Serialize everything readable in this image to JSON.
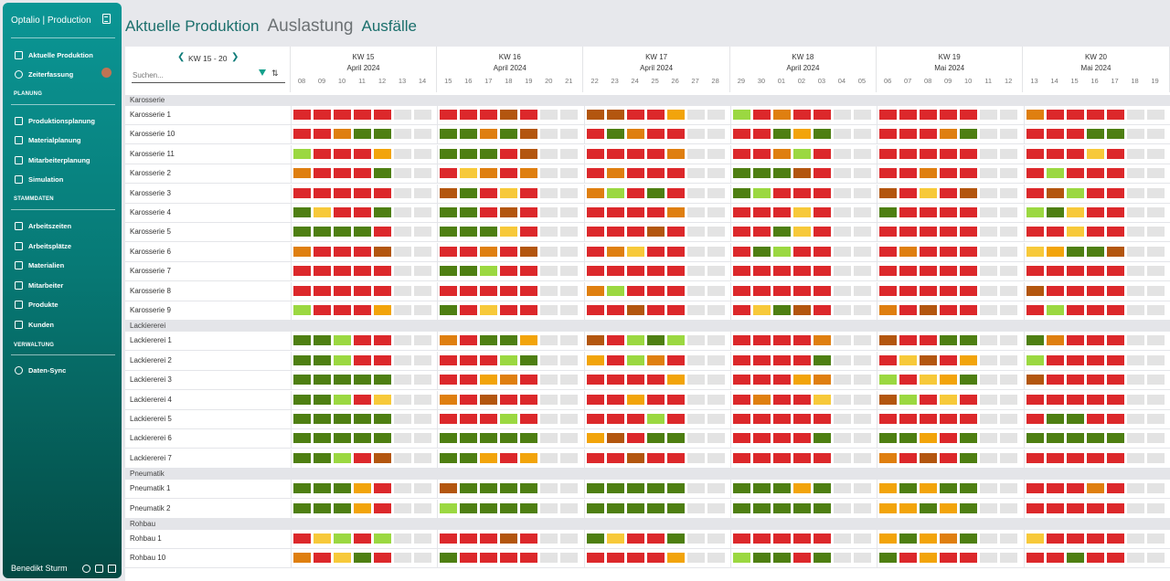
{
  "app": {
    "title": "Optalio | Production"
  },
  "sidebar": {
    "main": [
      {
        "key": "aktuelle-produktion",
        "label": "Aktuelle Produktion"
      },
      {
        "key": "zeiterfassung",
        "label": "Zeiterfassung"
      }
    ],
    "sections": [
      {
        "key": "planung",
        "title": "PLANUNG",
        "items": [
          {
            "key": "produktionsplanung",
            "label": "Produktionsplanung"
          },
          {
            "key": "materialplanung",
            "label": "Materialplanung"
          },
          {
            "key": "mitarbeiterplanung",
            "label": "Mitarbeiterplanung"
          },
          {
            "key": "simulation",
            "label": "Simulation"
          }
        ]
      },
      {
        "key": "stammdaten",
        "title": "STAMMDATEN",
        "items": [
          {
            "key": "arbeitszeiten",
            "label": "Arbeitszeiten"
          },
          {
            "key": "arbeitsplaetze",
            "label": "Arbeitsplätze"
          },
          {
            "key": "materialien",
            "label": "Materialien"
          },
          {
            "key": "mitarbeiter",
            "label": "Mitarbeiter"
          },
          {
            "key": "produkte",
            "label": "Produkte"
          },
          {
            "key": "kunden",
            "label": "Kunden"
          }
        ]
      },
      {
        "key": "verwaltung",
        "title": "VERWALTUNG",
        "items": [
          {
            "key": "daten-sync",
            "label": "Daten-Sync"
          }
        ]
      }
    ],
    "user": "Benedikt Sturm"
  },
  "header": {
    "tabs": [
      {
        "key": "aktuelle-produktion",
        "label": "Aktuelle Produktion",
        "active": true
      },
      {
        "key": "auslastung",
        "label": "Auslastung",
        "active": false
      },
      {
        "key": "ausfaelle",
        "label": "Ausfälle",
        "active": true
      }
    ]
  },
  "schedule": {
    "week_range": "KW 15 - 20",
    "search_placeholder": "Suchen...",
    "weeks": [
      {
        "title": "KW 15",
        "month": "April 2024",
        "days": [
          "08",
          "09",
          "10",
          "11",
          "12",
          "13",
          "14"
        ]
      },
      {
        "title": "KW 16",
        "month": "April 2024",
        "days": [
          "15",
          "16",
          "17",
          "18",
          "19",
          "20",
          "21"
        ]
      },
      {
        "title": "KW 17",
        "month": "April 2024",
        "days": [
          "22",
          "23",
          "24",
          "25",
          "26",
          "27",
          "28"
        ]
      },
      {
        "title": "KW 18",
        "month": "April 2024",
        "days": [
          "29",
          "30",
          "01",
          "02",
          "03",
          "04",
          "05"
        ]
      },
      {
        "title": "KW 19",
        "month": "Mai 2024",
        "days": [
          "06",
          "07",
          "08",
          "09",
          "10",
          "11",
          "12"
        ]
      },
      {
        "title": "KW 20",
        "month": "Mai 2024",
        "days": [
          "13",
          "14",
          "15",
          "16",
          "17",
          "18",
          "19"
        ]
      }
    ],
    "status_colors": {
      "1": "#dc282b",
      "2": "#4e7f12",
      "3": "#df7f10",
      "4": "#f2a40b",
      "5": "#9bd841",
      "6": "#b3560f",
      "7": "#f7c93a",
      "0": "#e3e3e3"
    },
    "groups": [
      {
        "name": "Karosserie",
        "rows": [
          {
            "label": "Karosserie 1",
            "cells": [
              "11111",
              "11161",
              "66114",
              "51311",
              "11111",
              "31111"
            ]
          },
          {
            "label": "Karosserie 10",
            "cells": [
              "11322",
              "22326",
              "12311",
              "11242",
              "11132",
              "11122"
            ]
          },
          {
            "label": "Karosserie 11",
            "cells": [
              "51114",
              "22216",
              "11113",
              "11351",
              "11111",
              "11171"
            ]
          },
          {
            "label": "Karosserie 2",
            "cells": [
              "31112",
              "17313",
              "13111",
              "22261",
              "11311",
              "15111"
            ]
          },
          {
            "label": "Karosserie 3",
            "cells": [
              "11111",
              "62171",
              "35121",
              "25111",
              "61716",
              "16511"
            ]
          },
          {
            "label": "Karosserie 4",
            "cells": [
              "27112",
              "22161",
              "11113",
              "11171",
              "21111",
              "52711"
            ]
          },
          {
            "label": "Karosserie 5",
            "cells": [
              "22221",
              "22271",
              "11161",
              "11271",
              "11111",
              "11711"
            ]
          },
          {
            "label": "Karosserie 6",
            "cells": [
              "31116",
              "11316",
              "13711",
              "12511",
              "13111",
              "74226"
            ]
          },
          {
            "label": "Karosserie 7",
            "cells": [
              "11111",
              "22511",
              "11111",
              "11111",
              "11111",
              "11111"
            ]
          },
          {
            "label": "Karosserie 8",
            "cells": [
              "11111",
              "11111",
              "35111",
              "11111",
              "11111",
              "61111"
            ]
          },
          {
            "label": "Karosserie 9",
            "cells": [
              "51114",
              "21711",
              "11611",
              "17261",
              "31611",
              "15111"
            ]
          }
        ]
      },
      {
        "name": "Lackiererei",
        "rows": [
          {
            "label": "Lackiererei 1",
            "cells": [
              "22511",
              "31224",
              "61525",
              "11113",
              "61122",
              "23111"
            ]
          },
          {
            "label": "Lackiererei 2",
            "cells": [
              "22511",
              "11152",
              "41531",
              "11112",
              "17614",
              "51111"
            ]
          },
          {
            "label": "Lackiererei 3",
            "cells": [
              "22222",
              "11431",
              "11114",
              "11143",
              "51742",
              "61111"
            ]
          },
          {
            "label": "Lackiererei 4",
            "cells": [
              "22517",
              "31611",
              "11411",
              "13117",
              "65171",
              "11111"
            ]
          },
          {
            "label": "Lackiererei 5",
            "cells": [
              "22222",
              "11151",
              "11151",
              "11111",
              "11111",
              "12211"
            ]
          },
          {
            "label": "Lackiererei 6",
            "cells": [
              "22222",
              "22222",
              "46122",
              "11112",
              "22412",
              "22222"
            ]
          },
          {
            "label": "Lackiererei 7",
            "cells": [
              "22516",
              "22414",
              "11611",
              "11111",
              "31612",
              "11111"
            ]
          }
        ]
      },
      {
        "name": "Pneumatik",
        "rows": [
          {
            "label": "Pneumatik 1",
            "cells": [
              "22241",
              "62222",
              "22222",
              "22242",
              "42422",
              "11131"
            ]
          },
          {
            "label": "Pneumatik 2",
            "cells": [
              "22241",
              "52222",
              "22222",
              "22222",
              "44242",
              "11111"
            ]
          }
        ]
      },
      {
        "name": "Rohbau",
        "rows": [
          {
            "label": "Rohbau 1",
            "cells": [
              "17515",
              "11161",
              "27112",
              "11111",
              "42432",
              "71111"
            ]
          },
          {
            "label": "Rohbau 10",
            "cells": [
              "31721",
              "21111",
              "11114",
              "52212",
              "21411",
              "11211"
            ]
          }
        ]
      }
    ]
  }
}
